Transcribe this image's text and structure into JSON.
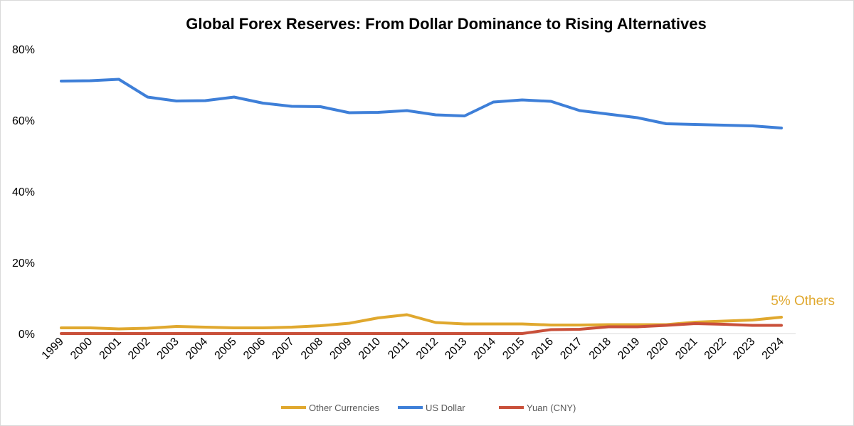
{
  "chart_data": {
    "type": "line",
    "title": "Global Forex Reserves: From Dollar Dominance to Rising Alternatives",
    "xlabel": "",
    "ylabel": "",
    "ylim": [
      0,
      80
    ],
    "y_ticks": [
      "0%",
      "20%",
      "40%",
      "60%",
      "80%"
    ],
    "grid": false,
    "legend_position": "bottom",
    "categories": [
      "1999",
      "2000",
      "2001",
      "2002",
      "2003",
      "2004",
      "2005",
      "2006",
      "2007",
      "2008",
      "2009",
      "2010",
      "2011",
      "2012",
      "2013",
      "2014",
      "2015",
      "2016",
      "2017",
      "2018",
      "2019",
      "2020",
      "2021",
      "2022",
      "2023",
      "2024"
    ],
    "series": [
      {
        "name": "Other Currencies",
        "color": "#E0A82E",
        "values": [
          1.6,
          1.6,
          1.3,
          1.5,
          2.0,
          1.8,
          1.6,
          1.6,
          1.8,
          2.2,
          2.9,
          4.4,
          5.3,
          3.1,
          2.7,
          2.7,
          2.7,
          2.4,
          2.4,
          2.5,
          2.5,
          2.5,
          3.2,
          3.5,
          3.8,
          4.6
        ]
      },
      {
        "name": "US Dollar",
        "color": "#3E7FD8",
        "values": [
          71.0,
          71.1,
          71.5,
          66.5,
          65.4,
          65.5,
          66.5,
          64.8,
          63.9,
          63.8,
          62.1,
          62.2,
          62.7,
          61.5,
          61.2,
          65.1,
          65.7,
          65.3,
          62.7,
          61.7,
          60.7,
          59.0,
          58.8,
          58.6,
          58.4,
          57.8
        ]
      },
      {
        "name": "Yuan (CNY)",
        "color": "#C9503A",
        "values": [
          0,
          0,
          0,
          0,
          0,
          0,
          0,
          0,
          0,
          0,
          0,
          0,
          0,
          0,
          0,
          0,
          0,
          1.1,
          1.2,
          1.9,
          1.9,
          2.3,
          2.8,
          2.6,
          2.3,
          2.3
        ]
      }
    ],
    "annotation": {
      "text": "5% Others",
      "color": "#E0A82E"
    }
  }
}
